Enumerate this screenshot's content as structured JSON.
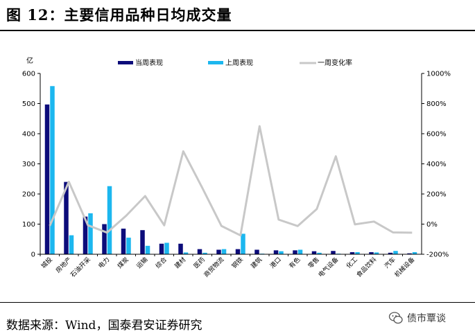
{
  "title": "图 12：主要信用品种日均成交量",
  "source": "数据来源：Wind，国泰君安证券研究",
  "watermark": "债市覃谈",
  "colors": {
    "current": "#0c0c7a",
    "prior": "#1cb7ef",
    "change": "#c8c8c8"
  },
  "chart_data": {
    "type": "bar",
    "ylabel": "亿",
    "ylim": [
      0,
      600
    ],
    "y_ticks": [
      "0",
      "100",
      "200",
      "300",
      "400",
      "500",
      "600"
    ],
    "y2lim": [
      -200,
      1000
    ],
    "y2_ticks": [
      "-200%",
      "0%",
      "200%",
      "400%",
      "600%",
      "800%",
      "1000%"
    ],
    "categories": [
      "城投",
      "房地产",
      "石油开采",
      "电力",
      "煤炭",
      "运输",
      "综合",
      "建材",
      "医药",
      "商贸物流",
      "钢铁",
      "建筑",
      "港口",
      "有色",
      "零售",
      "电气设备",
      "化工",
      "食品饮料",
      "汽车",
      "机械设备"
    ],
    "series": [
      {
        "name": "当周表现",
        "type": "bar",
        "values": [
          497,
          240,
          125,
          100,
          85,
          80,
          35,
          35,
          17,
          15,
          17,
          15,
          13,
          13,
          10,
          11,
          7,
          7,
          5,
          3
        ]
      },
      {
        "name": "上周表现",
        "type": "bar",
        "values": [
          558,
          63,
          136,
          226,
          55,
          28,
          38,
          6,
          5,
          17,
          68,
          2,
          10,
          15,
          5,
          2,
          7,
          6,
          11,
          7
        ]
      },
      {
        "name": "一周变化率",
        "type": "line",
        "axis": "right",
        "values": [
          -11,
          281,
          -8,
          -56,
          55,
          186,
          -8,
          483,
          240,
          -12,
          -75,
          650,
          30,
          -13,
          100,
          450,
          -2,
          17,
          -55,
          -57
        ]
      }
    ],
    "legend_position": "top"
  }
}
